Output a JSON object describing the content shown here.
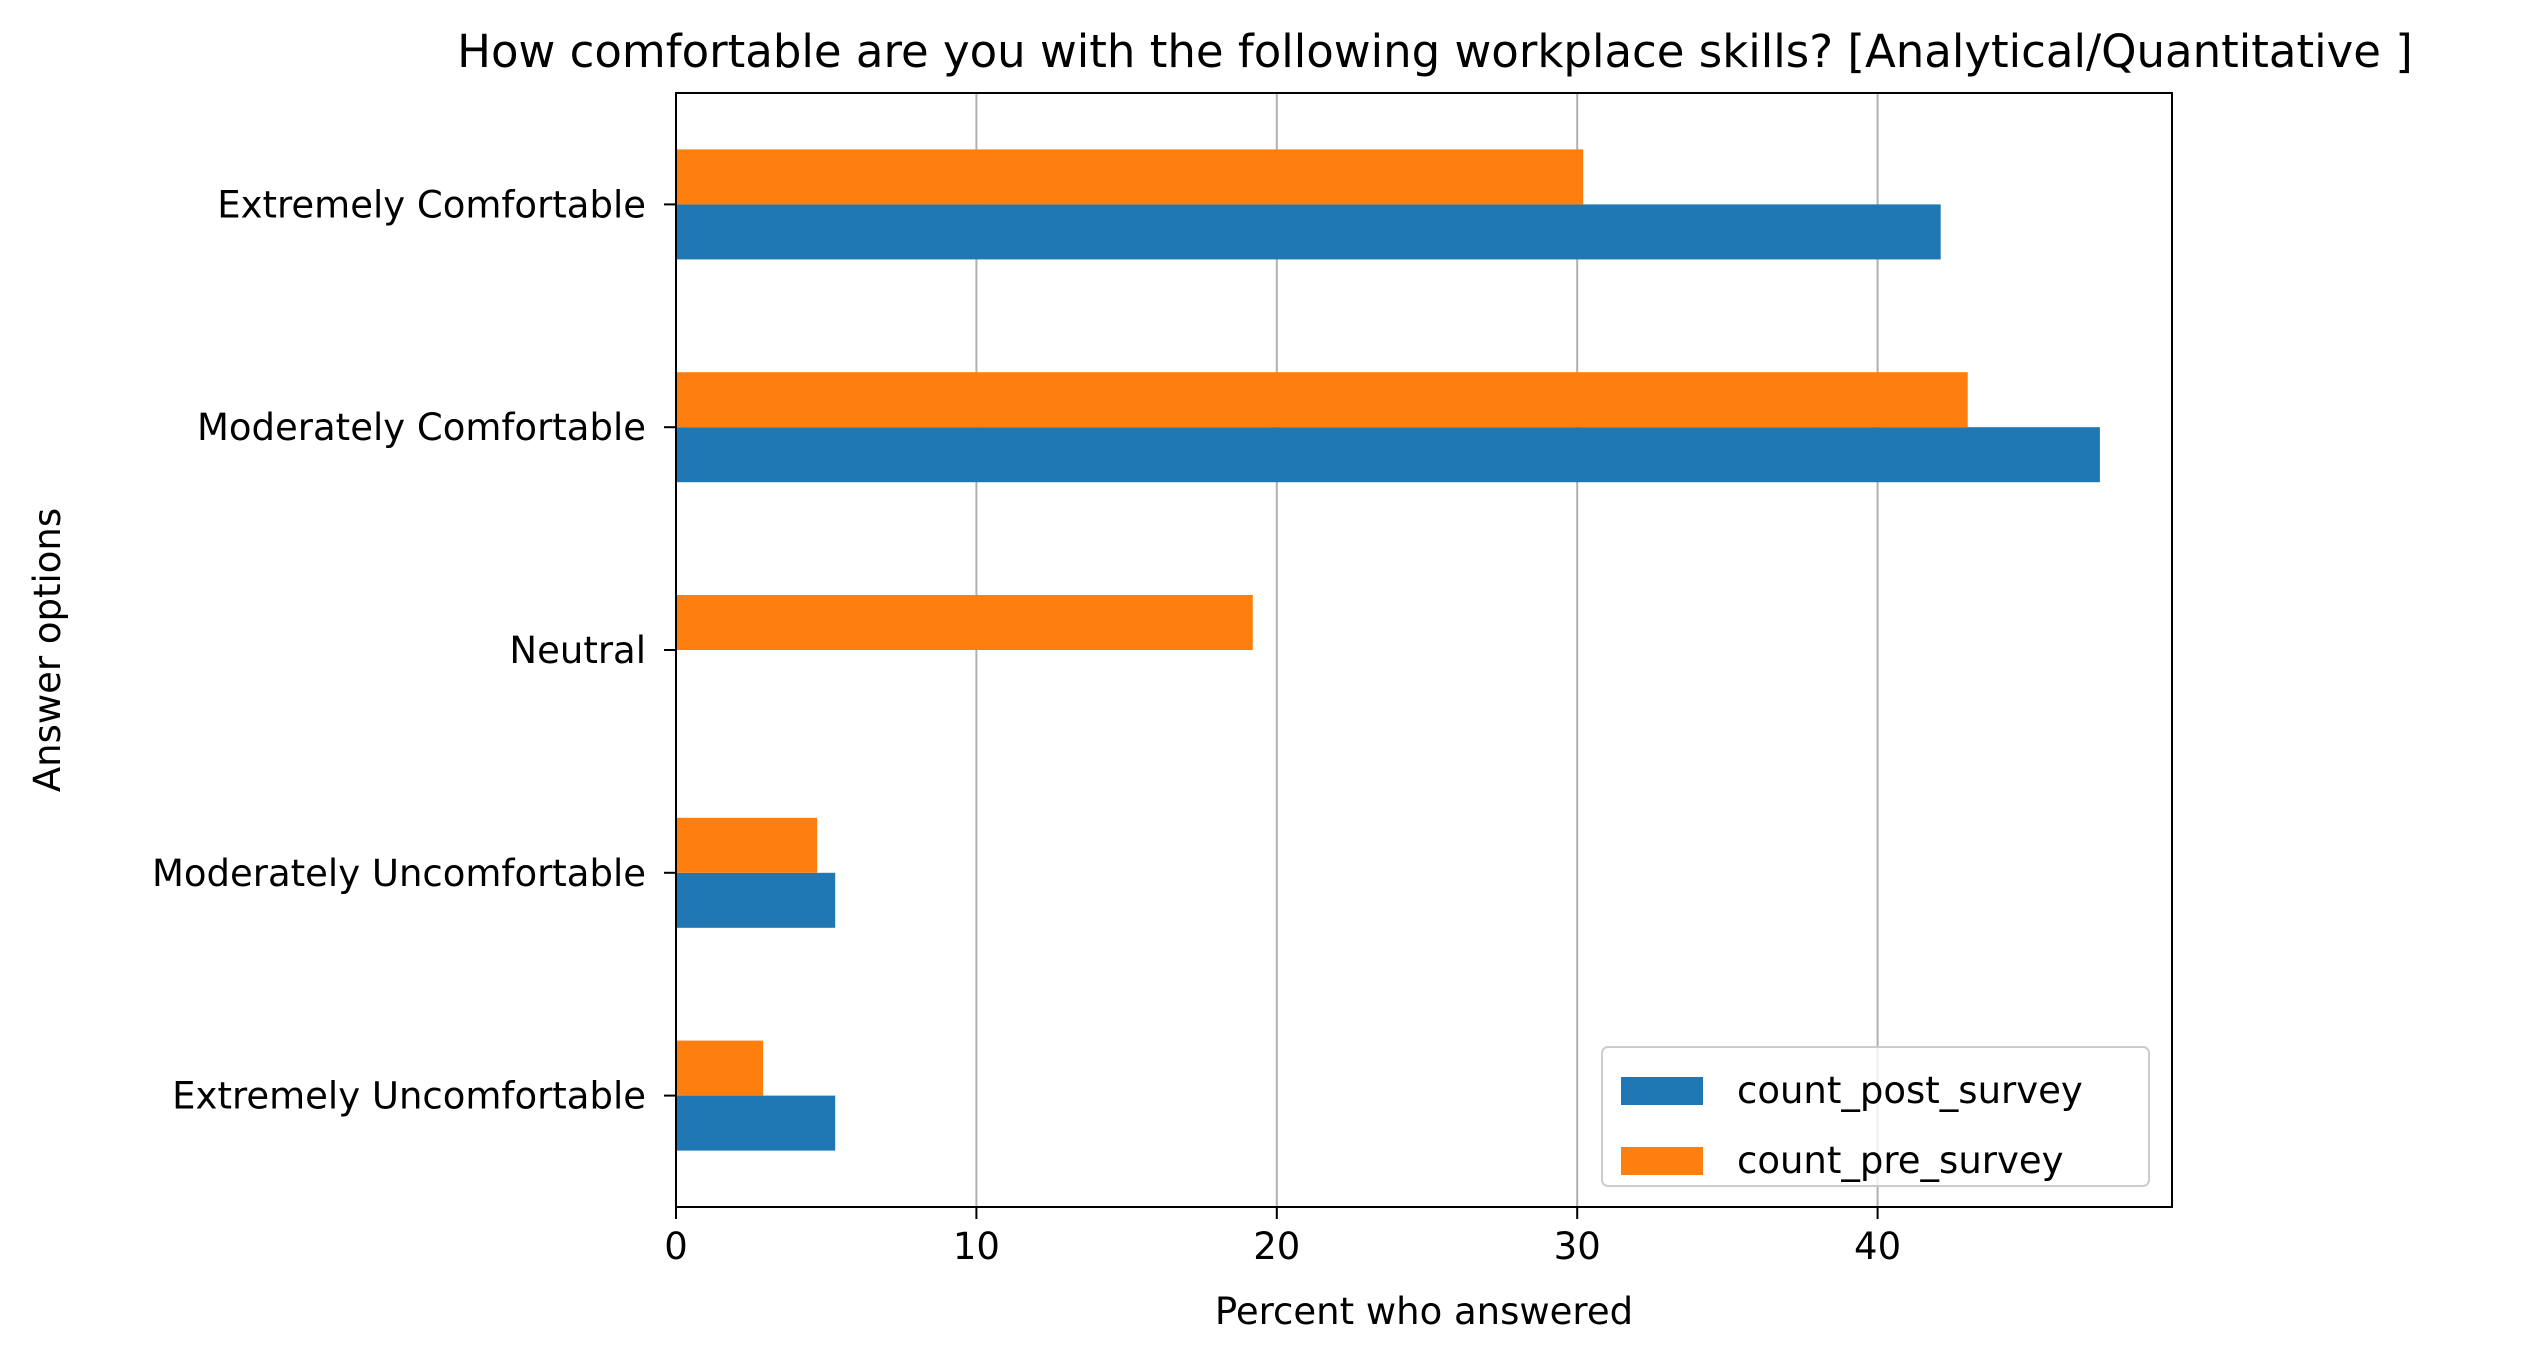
{
  "chart_data": {
    "type": "bar",
    "orientation": "horizontal",
    "title": "How comfortable are you with the following workplace skills? [Analytical/Quantitative ]",
    "xlabel": "Percent who answered",
    "ylabel": "Answer options",
    "categories": [
      "Extremely Comfortable",
      "Moderately Comfortable",
      "Neutral",
      "Moderately Uncomfortable",
      "Extremely Uncomfortable"
    ],
    "series": [
      {
        "name": "count_post_survey",
        "color": "#1f77b4",
        "values": [
          42.1,
          47.4,
          0,
          5.3,
          5.3
        ]
      },
      {
        "name": "count_pre_survey",
        "color": "#ff7f0e",
        "values": [
          30.2,
          43.0,
          19.2,
          4.7,
          2.9
        ]
      }
    ],
    "xlim": [
      0,
      49.8
    ],
    "xticks": [
      0,
      10,
      20,
      30,
      40
    ],
    "grid": "x",
    "legend_position": "lower right"
  }
}
